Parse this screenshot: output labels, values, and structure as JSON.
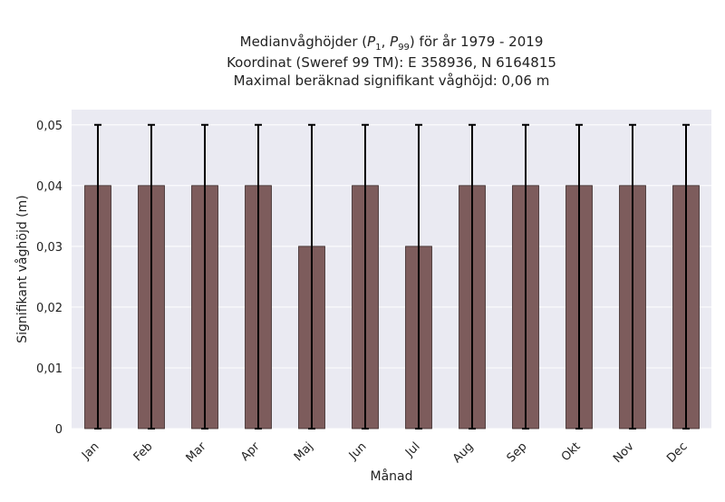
{
  "chart_data": {
    "type": "bar",
    "title_lines": [
      "Medianvåghöjder (P1, P99) för år 1979 - 2019",
      "Koordinat (Sweref 99 TM): E 358936, N 6164815",
      "Maximal beräknad signifikant våghöjd: 0,06 m"
    ],
    "xlabel": "Månad",
    "ylabel": "Signifikant våghöjd (m)",
    "categories": [
      "Jan",
      "Feb",
      "Mar",
      "Apr",
      "Maj",
      "Jun",
      "Jul",
      "Aug",
      "Sep",
      "Okt",
      "Nov",
      "Dec"
    ],
    "values": [
      0.04,
      0.04,
      0.04,
      0.04,
      0.03,
      0.04,
      0.03,
      0.04,
      0.04,
      0.04,
      0.04,
      0.04
    ],
    "error_low": [
      0,
      0,
      0,
      0,
      0,
      0,
      0,
      0,
      0,
      0,
      0,
      0
    ],
    "error_high": [
      0.05,
      0.05,
      0.05,
      0.05,
      0.05,
      0.05,
      0.05,
      0.05,
      0.05,
      0.05,
      0.05,
      0.05
    ],
    "ylim": [
      0,
      0.0525
    ],
    "yticks": [
      0,
      0.01,
      0.02,
      0.03,
      0.04,
      0.05
    ],
    "ytick_labels": [
      "0",
      "0,01",
      "0,02",
      "0,03",
      "0,04",
      "0,05"
    ],
    "grid": true,
    "colors": {
      "bar": "#7d5c5c",
      "bar_edge": "#3a2a2a",
      "error_bar": "#000000",
      "plot_background": "#eaeaf2",
      "grid": "#ffffff"
    }
  }
}
